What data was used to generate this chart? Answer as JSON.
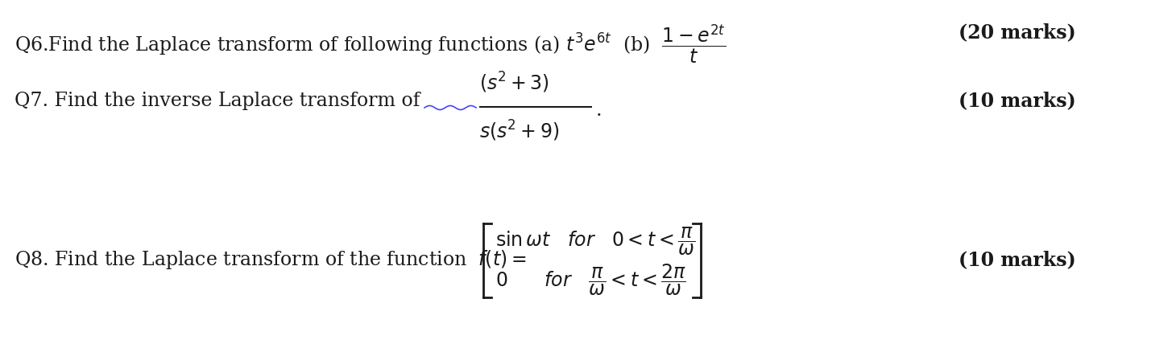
{
  "bg_color": "#ffffff",
  "text_color": "#1a1a1a",
  "figsize": [
    14.6,
    4.28
  ],
  "dpi": 100,
  "q6_marks": "(20 marks)",
  "q7_marks": "(10 marks)",
  "q8_marks": "(10 marks)",
  "font_size_main": 17,
  "font_size_marks": 17,
  "wavy_color": "#4444ff"
}
